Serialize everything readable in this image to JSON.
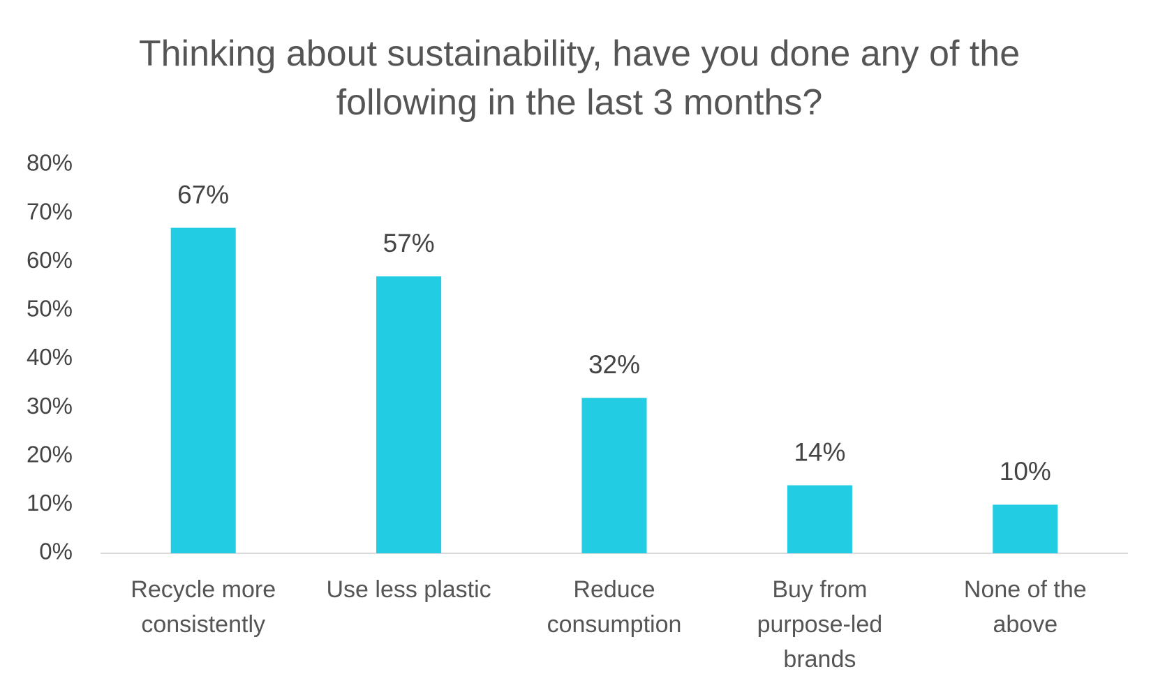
{
  "chart_data": {
    "type": "bar",
    "title": "Thinking about sustainability, have you done any of the following in the last 3 months?",
    "categories": [
      "Recycle more consistently",
      "Use less plastic",
      "Reduce consumption",
      "Buy from purpose-led brands",
      "None of the above"
    ],
    "values": [
      67,
      57,
      32,
      14,
      10
    ],
    "value_labels": [
      "67%",
      "57%",
      "32%",
      "14%",
      "10%"
    ],
    "color": "#22cde4",
    "ylim": [
      0,
      80
    ],
    "yticks": [
      {
        "value": 0,
        "label": "0%"
      },
      {
        "value": 10,
        "label": "10%"
      },
      {
        "value": 20,
        "label": "20%"
      },
      {
        "value": 30,
        "label": "30%"
      },
      {
        "value": 40,
        "label": "40%"
      },
      {
        "value": 50,
        "label": "50%"
      },
      {
        "value": 60,
        "label": "60%"
      },
      {
        "value": 70,
        "label": "70%"
      },
      {
        "value": 80,
        "label": "80%"
      }
    ],
    "grid": false
  }
}
